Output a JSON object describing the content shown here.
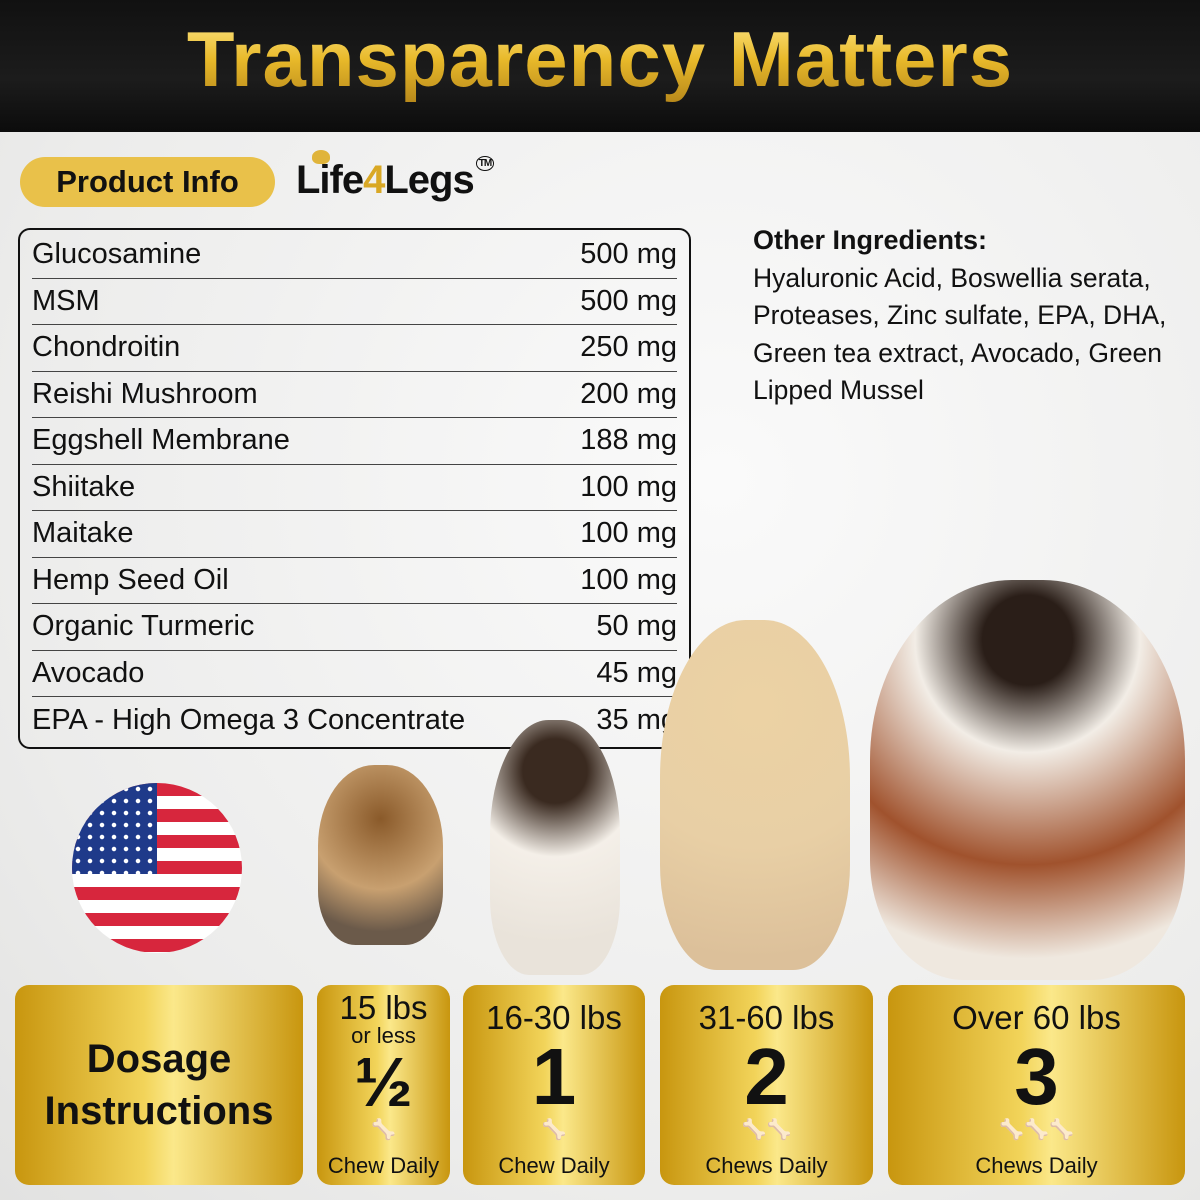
{
  "title": "Transparency Matters",
  "product_info_label": "Product Info",
  "brand": {
    "pre": "Life",
    "num": "4",
    "post": "Legs",
    "tm": "TM"
  },
  "ingredients": [
    {
      "name": "Glucosamine",
      "amount": "500 mg"
    },
    {
      "name": "MSM",
      "amount": "500 mg"
    },
    {
      "name": "Chondroitin",
      "amount": "250 mg"
    },
    {
      "name": "Reishi Mushroom",
      "amount": "200 mg"
    },
    {
      "name": "Eggshell Membrane",
      "amount": "188 mg"
    },
    {
      "name": "Shiitake",
      "amount": "100 mg"
    },
    {
      "name": "Maitake",
      "amount": "100 mg"
    },
    {
      "name": "Hemp Seed Oil",
      "amount": "100 mg"
    },
    {
      "name": "Organic Turmeric",
      "amount": "50 mg"
    },
    {
      "name": "Avocado",
      "amount": "45 mg"
    },
    {
      "name": "EPA - High Omega 3 Concentrate",
      "amount": "35 mg"
    }
  ],
  "other_ingredients": {
    "heading": "Other Ingredients:",
    "text": "Hyaluronic Acid, Boswellia serata, Proteases, Zinc sulfate, EPA, DHA, Green tea extract, Avocado, Green Lipped Mussel"
  },
  "dosage": {
    "heading_1": "Dosage",
    "heading_2": "Instructions",
    "tiers": [
      {
        "weight": "15 lbs",
        "sub": "or less",
        "count": "½",
        "bones": "🦴",
        "daily": "Chew Daily"
      },
      {
        "weight": "16-30 lbs",
        "count": "1",
        "bones": "🦴",
        "daily": "Chew Daily"
      },
      {
        "weight": "31-60 lbs",
        "count": "2",
        "bones": "🦴🦴",
        "daily": "Chews Daily"
      },
      {
        "weight": "Over 60 lbs",
        "count": "3",
        "bones": "🦴🦴🦴",
        "daily": "Chews Daily"
      }
    ]
  },
  "colors": {
    "gold": "#e9c14a",
    "header": "#111111"
  }
}
